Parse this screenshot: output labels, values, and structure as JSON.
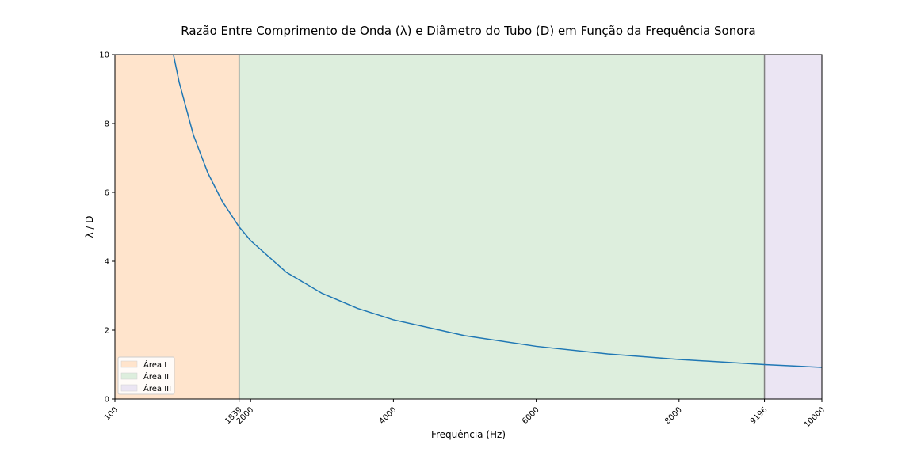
{
  "chart_data": {
    "type": "line",
    "title": "Razão Entre Comprimento de Onda (λ) e Diâmetro do Tubo (D) em Função da Frequência Sonora",
    "xlabel": "Frequência (Hz)",
    "ylabel": "λ / D",
    "xlim": [
      100,
      10000
    ],
    "ylim": [
      0,
      10
    ],
    "x_ticks": [
      100,
      1839,
      2000,
      4000,
      6000,
      8000,
      9196,
      10000
    ],
    "y_ticks": [
      0,
      2,
      4,
      6,
      8,
      10
    ],
    "grid": false,
    "legend_position": "lower-left",
    "series": [
      {
        "color": "#1f77b4",
        "x": [
          919.6,
          1000,
          1200,
          1400,
          1600,
          1839,
          2000,
          2500,
          3000,
          3500,
          4000,
          5000,
          6000,
          7000,
          8000,
          9196,
          10000
        ],
        "y": [
          10.0,
          9.2,
          7.66,
          6.57,
          5.75,
          5.0,
          4.6,
          3.68,
          3.07,
          2.63,
          2.3,
          1.84,
          1.53,
          1.31,
          1.15,
          1.0,
          0.92
        ]
      }
    ],
    "regions": [
      {
        "name": "Área I",
        "x_start": 100,
        "x_end": 1839,
        "color": "#ffe4cc"
      },
      {
        "name": "Área II",
        "x_start": 1839,
        "x_end": 9196,
        "color": "#ddeedd"
      },
      {
        "name": "Área III",
        "x_start": 9196,
        "x_end": 10000,
        "color": "#ebe5f3"
      }
    ],
    "vertical_lines": [
      1839,
      9196
    ],
    "vline_color": "#808080"
  }
}
